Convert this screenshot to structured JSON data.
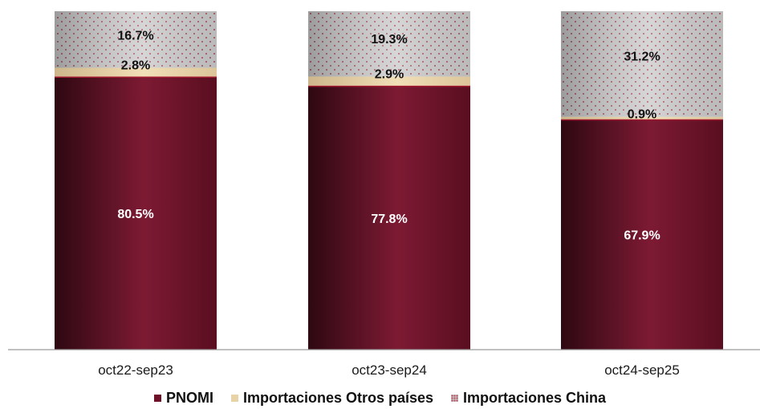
{
  "chart_data": {
    "type": "bar",
    "stacked": true,
    "percent_stacked": true,
    "categories": [
      "oct22-sep23",
      "oct23-sep24",
      "oct24-sep25"
    ],
    "series": [
      {
        "name": "PNOMI",
        "values": [
          80.5,
          77.8,
          67.9
        ],
        "labels": [
          "80.5%",
          "77.8%",
          "67.9%"
        ],
        "color": "#6e1128"
      },
      {
        "name": "Importaciones Otros países",
        "values": [
          2.8,
          2.9,
          0.9
        ],
        "labels": [
          "2.8%",
          "2.9%",
          "0.9%"
        ],
        "color": "#e8d3a8"
      },
      {
        "name": "Importaciones China",
        "values": [
          16.7,
          19.3,
          31.2
        ],
        "labels": [
          "16.7%",
          "19.3%",
          "31.2%"
        ],
        "color": "#cfcfcf"
      }
    ],
    "ylim": [
      0,
      100
    ],
    "grid": false,
    "legend_position": "bottom"
  }
}
